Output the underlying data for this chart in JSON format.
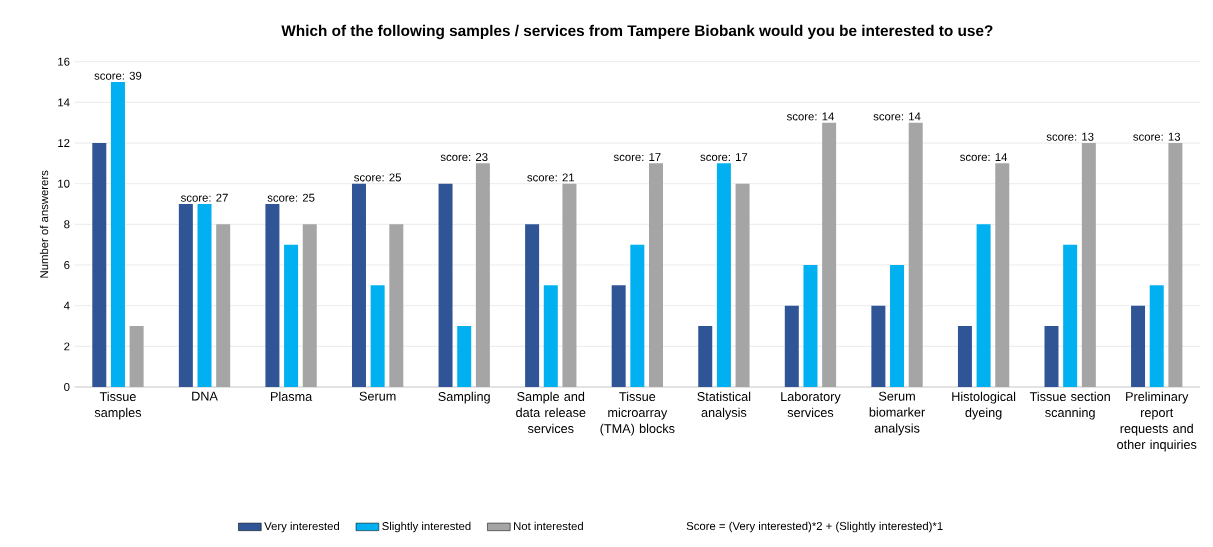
{
  "chart_data": {
    "type": "bar",
    "title": "Which of the following samples / services from Tampere Biobank would you be interested to use?",
    "ylabel": "Number of answerers",
    "categories": [
      "Tissue samples",
      "DNA",
      "Plasma",
      "Serum",
      "Sampling",
      "Sample and data release services",
      "Tissue microarray (TMA) blocks",
      "Statistical analysis",
      "Laboratory services",
      "Serum biomarker analysis",
      "Histological dyeing",
      "Tissue section scanning",
      "Preliminary report requests and other inquiries"
    ],
    "series": [
      {
        "name": "Very interested",
        "color": "#2f5597",
        "values": [
          12,
          9,
          9,
          10,
          10,
          8,
          5,
          3,
          4,
          4,
          3,
          3,
          4
        ]
      },
      {
        "name": "Slightly interested",
        "color": "#00b0f0",
        "values": [
          15,
          9,
          7,
          5,
          3,
          5,
          7,
          11,
          6,
          6,
          8,
          7,
          5
        ]
      },
      {
        "name": "Not interested",
        "color": "#a5a5a5",
        "values": [
          3,
          8,
          8,
          8,
          11,
          10,
          11,
          10,
          13,
          13,
          11,
          12,
          12
        ]
      }
    ],
    "ylim": [
      0,
      16
    ],
    "yticks": [
      0,
      2,
      4,
      6,
      8,
      10,
      12,
      14,
      16
    ],
    "grid": "y",
    "legend": "bottom",
    "annotations": [
      "score: 39",
      "score: 27",
      "score: 25",
      "score: 25",
      "score: 23",
      "score: 21",
      "score: 17",
      "score: 17",
      "score: 14",
      "score: 14",
      "score: 14",
      "score: 13",
      "score: 13",
      "Score = (Very interested)*2 + (Slightly interested)*1"
    ]
  }
}
